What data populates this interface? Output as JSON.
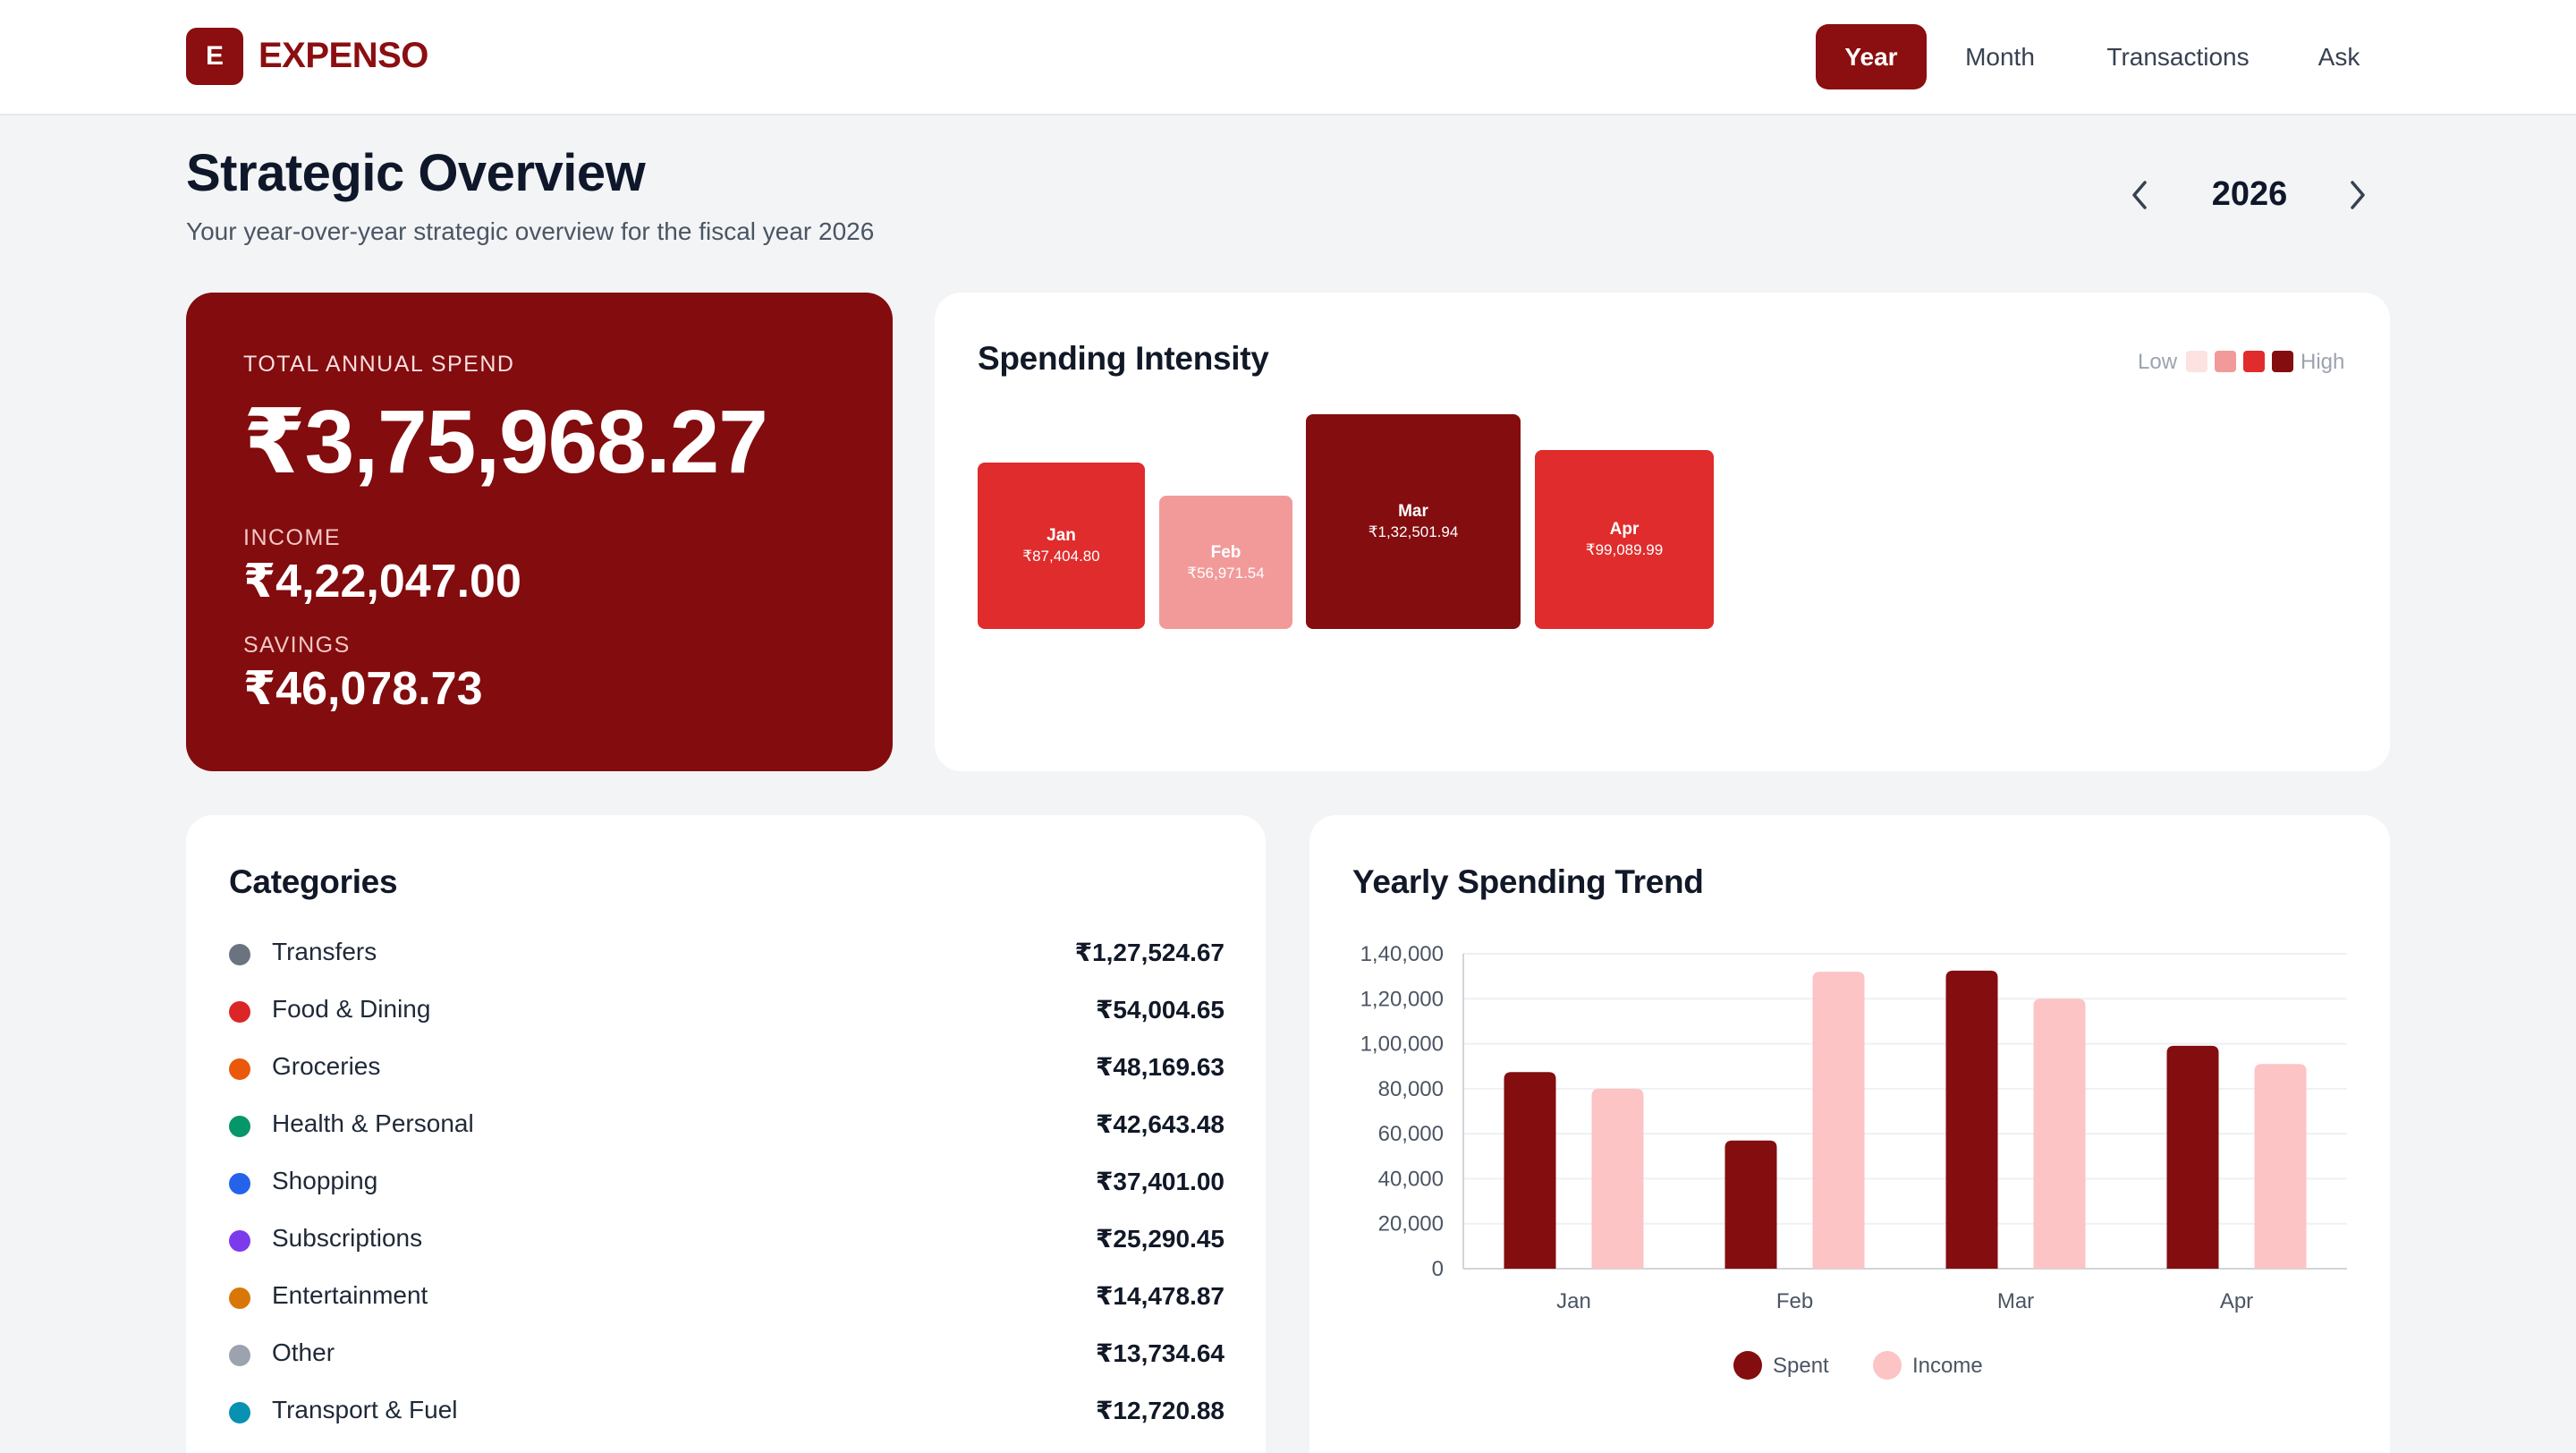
{
  "header": {
    "logo_letter": "E",
    "brand": "EXPENSO",
    "nav": [
      {
        "label": "Year",
        "active": true
      },
      {
        "label": "Month",
        "active": false
      },
      {
        "label": "Transactions",
        "active": false
      },
      {
        "label": "Ask",
        "active": false
      }
    ]
  },
  "page": {
    "title": "Strategic Overview",
    "subtitle": "Your year-over-year strategic overview for the fiscal year 2026",
    "year": "2026",
    "prev_icon": "chevron-left-icon",
    "next_icon": "chevron-right-icon"
  },
  "summary": {
    "total_label": "TOTAL ANNUAL SPEND",
    "total": "₹3,75,968.27",
    "income_label": "INCOME",
    "income": "₹4,22,047.00",
    "savings_label": "SAVINGS",
    "savings": "₹46,078.73"
  },
  "intensity": {
    "title": "Spending Intensity",
    "legend_low": "Low",
    "legend_high": "High",
    "legend_colors": [
      "#fde2e2",
      "#f29a9a",
      "#e02c2c",
      "#840d0f"
    ],
    "tiles": [
      {
        "month": "Jan",
        "value": "₹87,404.80",
        "level": 3
      },
      {
        "month": "Feb",
        "value": "₹56,971.54",
        "level": 2
      },
      {
        "month": "Mar",
        "value": "₹1,32,501.94",
        "level": 4
      },
      {
        "month": "Apr",
        "value": "₹99,089.99",
        "level": 3
      }
    ]
  },
  "categories": {
    "title": "Categories",
    "items": [
      {
        "name": "Transfers",
        "amount": "₹1,27,524.67",
        "color": "#6b7280"
      },
      {
        "name": "Food & Dining",
        "amount": "₹54,004.65",
        "color": "#dc2626"
      },
      {
        "name": "Groceries",
        "amount": "₹48,169.63",
        "color": "#ea580c"
      },
      {
        "name": "Health & Personal",
        "amount": "₹42,643.48",
        "color": "#059669"
      },
      {
        "name": "Shopping",
        "amount": "₹37,401.00",
        "color": "#2563eb"
      },
      {
        "name": "Subscriptions",
        "amount": "₹25,290.45",
        "color": "#7c3aed"
      },
      {
        "name": "Entertainment",
        "amount": "₹14,478.87",
        "color": "#d97706"
      },
      {
        "name": "Other",
        "amount": "₹13,734.64",
        "color": "#9ca3af"
      },
      {
        "name": "Transport & Fuel",
        "amount": "₹12,720.88",
        "color": "#0891b2"
      }
    ]
  },
  "chart_data": {
    "type": "bar",
    "title": "Yearly Spending Trend",
    "categories": [
      "Jan",
      "Feb",
      "Mar",
      "Apr"
    ],
    "series": [
      {
        "name": "Spent",
        "color": "#840d0f",
        "values": [
          87404.8,
          56971.54,
          132501.94,
          99089.99
        ]
      },
      {
        "name": "Income",
        "color": "#fcc4c4",
        "values": [
          80000,
          132000,
          120000,
          91000
        ]
      }
    ],
    "ylim": [
      0,
      140000
    ],
    "yticks": [
      "0",
      "20,000",
      "40,000",
      "60,000",
      "80,000",
      "1,00,000",
      "1,20,000",
      "1,40,000"
    ],
    "grid": true,
    "legend": "bottom"
  }
}
